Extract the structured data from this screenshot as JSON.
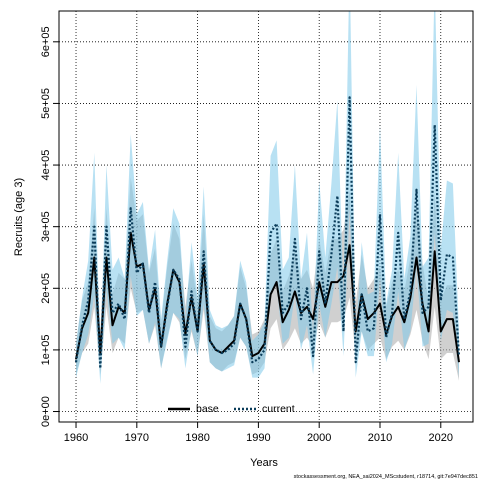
{
  "colors": {
    "base_band": "#aaaaaa",
    "current_band": "#7ec8e9",
    "base_line": "#000000",
    "current_line": "#0a3c5a",
    "grid": "#000000"
  },
  "chart_data": {
    "type": "line",
    "xlabel": "Years",
    "ylabel": "Recruits (age 3)",
    "xlim": [
      1957.2,
      2025.3
    ],
    "ylim": [
      -17000,
      650000
    ],
    "xticks": [
      1960,
      1970,
      1980,
      1990,
      2000,
      2010,
      2020
    ],
    "xtick_labels": [
      "1960",
      "1970",
      "1980",
      "1990",
      "2000",
      "2010",
      "2020"
    ],
    "yticks": [
      0,
      100000,
      200000,
      300000,
      400000,
      500000,
      600000
    ],
    "ytick_labels": [
      "0e+00",
      "1e+05",
      "2e+05",
      "3e+05",
      "4e+05",
      "5e+05",
      "6e+05"
    ],
    "grid": true,
    "legend_position": "bottom-center",
    "legend": [
      "base",
      "current"
    ],
    "footnote": "stockassessment.org, NEA_sai2024_MScstudent, r18714, git:7e947dec851",
    "x": [
      1960,
      1961,
      1962,
      1963,
      1964,
      1965,
      1966,
      1967,
      1968,
      1969,
      1970,
      1971,
      1972,
      1973,
      1974,
      1975,
      1976,
      1977,
      1978,
      1979,
      1980,
      1981,
      1982,
      1983,
      1984,
      1985,
      1986,
      1987,
      1988,
      1989,
      1990,
      1991,
      1992,
      1993,
      1994,
      1995,
      1996,
      1997,
      1998,
      1999,
      2000,
      2001,
      2002,
      2003,
      2004,
      2005,
      2006,
      2007,
      2008,
      2009,
      2010,
      2011,
      2012,
      2013,
      2014,
      2015,
      2016,
      2017,
      2018,
      2019,
      2020,
      2021,
      2022,
      2023
    ],
    "series": [
      {
        "name": "base",
        "values": [
          85000,
          135000,
          160000,
          250000,
          95000,
          250000,
          140000,
          170000,
          160000,
          290000,
          235000,
          240000,
          165000,
          200000,
          105000,
          175000,
          230000,
          210000,
          125000,
          185000,
          130000,
          240000,
          115000,
          100000,
          95000,
          105000,
          115000,
          175000,
          150000,
          90000,
          95000,
          110000,
          190000,
          210000,
          145000,
          165000,
          195000,
          160000,
          170000,
          150000,
          210000,
          170000,
          210000,
          210000,
          220000,
          270000,
          130000,
          190000,
          150000,
          160000,
          175000,
          125000,
          155000,
          170000,
          145000,
          185000,
          250000,
          175000,
          130000,
          260000,
          130000,
          150000,
          150000,
          80000
        ],
        "lower": [
          60000,
          95000,
          110000,
          170000,
          60000,
          170000,
          95000,
          120000,
          110000,
          200000,
          160000,
          165000,
          110000,
          140000,
          70000,
          120000,
          160000,
          145000,
          85000,
          130000,
          90000,
          165000,
          80000,
          70000,
          65000,
          75000,
          80000,
          120000,
          105000,
          60000,
          65000,
          80000,
          135000,
          150000,
          100000,
          115000,
          135000,
          110000,
          120000,
          105000,
          145000,
          120000,
          145000,
          145000,
          150000,
          185000,
          90000,
          130000,
          100000,
          110000,
          120000,
          85000,
          105000,
          115000,
          100000,
          125000,
          165000,
          115000,
          85000,
          170000,
          85000,
          95000,
          95000,
          50000
        ],
        "upper": [
          110000,
          180000,
          210000,
          330000,
          130000,
          330000,
          190000,
          225000,
          215000,
          380000,
          310000,
          320000,
          225000,
          265000,
          145000,
          235000,
          305000,
          280000,
          170000,
          245000,
          175000,
          320000,
          155000,
          135000,
          130000,
          140000,
          155000,
          235000,
          200000,
          125000,
          130000,
          150000,
          255000,
          280000,
          195000,
          220000,
          260000,
          215000,
          230000,
          200000,
          280000,
          225000,
          280000,
          280000,
          295000,
          360000,
          175000,
          255000,
          200000,
          215000,
          235000,
          170000,
          210000,
          230000,
          195000,
          250000,
          340000,
          240000,
          180000,
          355000,
          180000,
          205000,
          205000,
          115000
        ]
      },
      {
        "name": "current",
        "values": [
          80000,
          140000,
          180000,
          300000,
          70000,
          300000,
          160000,
          175000,
          150000,
          330000,
          225000,
          240000,
          160000,
          210000,
          105000,
          170000,
          230000,
          215000,
          105000,
          195000,
          130000,
          260000,
          115000,
          100000,
          95000,
          100000,
          110000,
          175000,
          150000,
          80000,
          85000,
          100000,
          290000,
          305000,
          160000,
          175000,
          280000,
          150000,
          200000,
          90000,
          260000,
          175000,
          255000,
          350000,
          130000,
          510000,
          80000,
          190000,
          130000,
          135000,
          320000,
          120000,
          160000,
          290000,
          150000,
          195000,
          360000,
          160000,
          170000,
          465000,
          180000,
          255000,
          250000,
          90000
        ],
        "lower": [
          55000,
          95000,
          125000,
          190000,
          45000,
          200000,
          110000,
          120000,
          100000,
          220000,
          155000,
          165000,
          110000,
          145000,
          70000,
          115000,
          160000,
          150000,
          70000,
          135000,
          90000,
          175000,
          80000,
          70000,
          65000,
          70000,
          75000,
          120000,
          105000,
          55000,
          55000,
          70000,
          195000,
          205000,
          110000,
          120000,
          190000,
          100000,
          140000,
          60000,
          175000,
          120000,
          175000,
          235000,
          90000,
          330000,
          55000,
          130000,
          90000,
          90000,
          215000,
          80000,
          110000,
          195000,
          100000,
          130000,
          235000,
          105000,
          110000,
          290000,
          115000,
          165000,
          160000,
          55000
        ],
        "upper": [
          110000,
          185000,
          245000,
          420000,
          100000,
          400000,
          230000,
          250000,
          215000,
          450000,
          320000,
          340000,
          230000,
          295000,
          150000,
          245000,
          330000,
          305000,
          150000,
          275000,
          185000,
          365000,
          165000,
          140000,
          135000,
          140000,
          155000,
          245000,
          210000,
          115000,
          125000,
          145000,
          415000,
          440000,
          230000,
          250000,
          400000,
          215000,
          290000,
          130000,
          375000,
          250000,
          370000,
          505000,
          190000,
          730000,
          115000,
          275000,
          190000,
          195000,
          465000,
          175000,
          230000,
          420000,
          215000,
          285000,
          530000,
          235000,
          250000,
          700000,
          265000,
          375000,
          370000,
          130000
        ]
      }
    ]
  }
}
